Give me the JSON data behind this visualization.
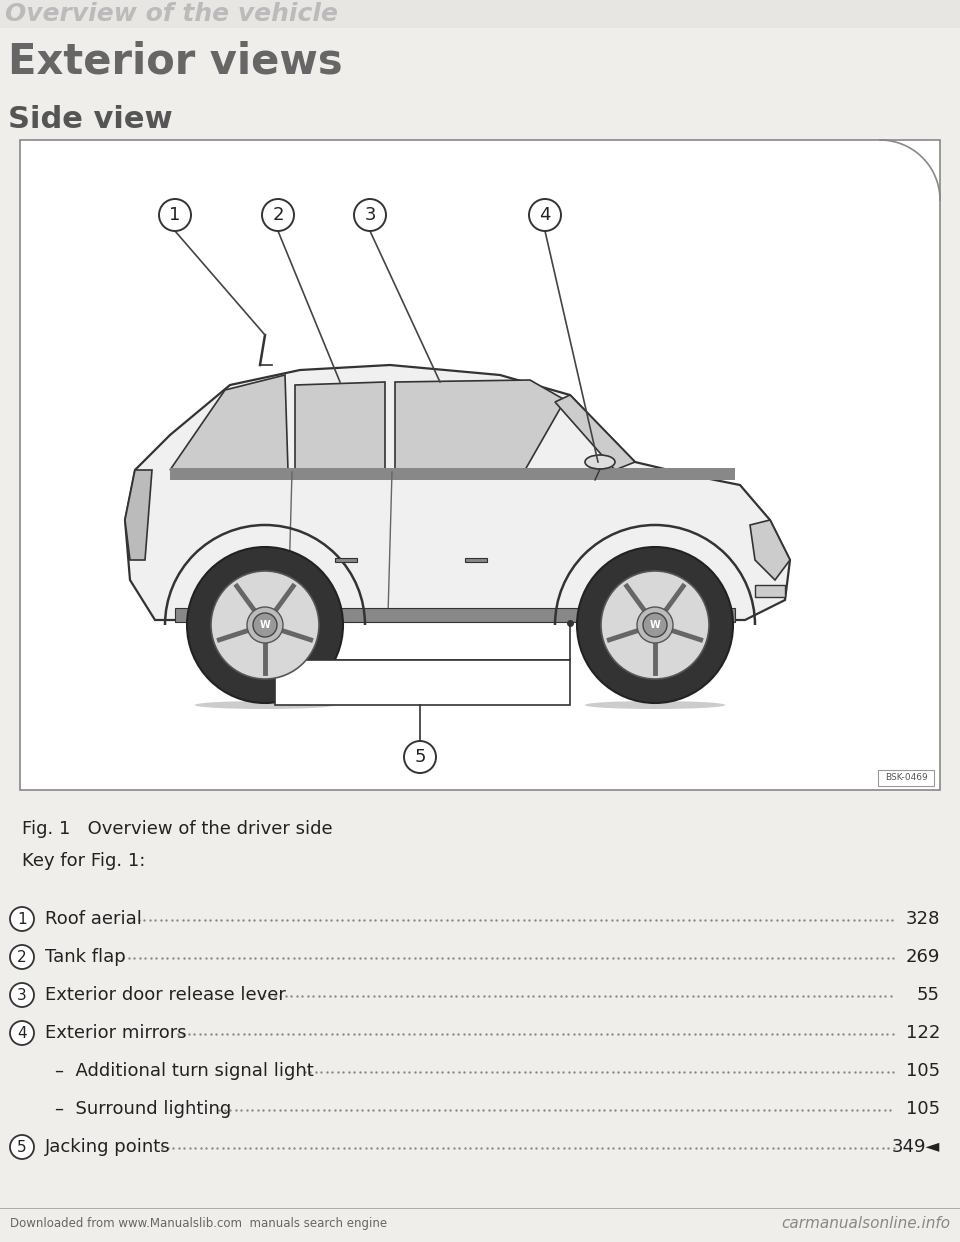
{
  "bg_color": "#f0eeeb",
  "box_bg": "#ffffff",
  "header_text": "Overview of the vehicle",
  "section_title": "Exterior views",
  "subsection_title": "Side view",
  "fig_caption": "Fig. 1   Overview of the driver side",
  "key_title": "Key for Fig. 1:",
  "items": [
    {
      "num": "1",
      "label": "Roof aerial",
      "page": "328",
      "indent": false
    },
    {
      "num": "2",
      "label": "Tank flap",
      "page": "269",
      "indent": false
    },
    {
      "num": "3",
      "label": "Exterior door release lever",
      "page": "55",
      "indent": false
    },
    {
      "num": "4",
      "label": "Exterior mirrors",
      "page": "122",
      "indent": false
    },
    {
      "num": "",
      "label": "–  Additional turn signal light",
      "page": "105",
      "indent": true
    },
    {
      "num": "",
      "label": "–  Surround lighting",
      "page": "105",
      "indent": true
    },
    {
      "num": "5",
      "label": "Jacking points",
      "page": "349◄",
      "indent": false
    }
  ],
  "footer_left": "Downloaded from www.Manualslib.com  manuals search engine",
  "footer_right": "carmanualsonline.info",
  "box_label": "BSK-0469",
  "text_color": "#222222",
  "gray_text": "#888888",
  "dot_color": "#888888",
  "line_color": "#444444",
  "car_body_color": "#f0f0f0",
  "car_line_color": "#333333",
  "win_color": "#cccccc",
  "tire_color": "#333333",
  "rim_color": "#d8d8d8"
}
